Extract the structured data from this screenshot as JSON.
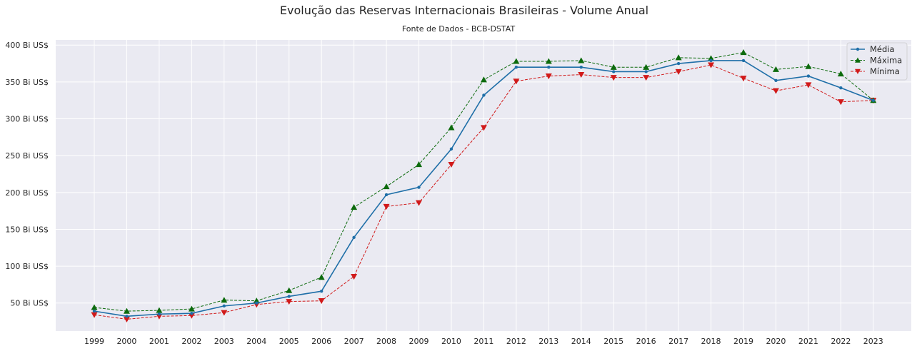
{
  "chart_data": {
    "type": "line",
    "title": "Evolução das Reservas Internacionais Brasileiras - Volume Anual",
    "subtitle": "Fonte de Dados - BCB-DSTAT",
    "xlabel": "",
    "ylabel": "",
    "x": [
      "1999",
      "2000",
      "2001",
      "2002",
      "2003",
      "2004",
      "2005",
      "2006",
      "2007",
      "2008",
      "2009",
      "2010",
      "2011",
      "2012",
      "2013",
      "2014",
      "2015",
      "2016",
      "2017",
      "2018",
      "2019",
      "2020",
      "2021",
      "2022",
      "2023"
    ],
    "ylim": [
      12,
      407
    ],
    "yticks": [
      50,
      100,
      150,
      200,
      250,
      300,
      350,
      400
    ],
    "ytick_labels": [
      "50 Bi US$",
      "100 Bi US$",
      "150 Bi US$",
      "200 Bi US$",
      "250 Bi US$",
      "300 Bi US$",
      "350 Bi US$",
      "400 Bi US$"
    ],
    "grid": true,
    "legend_position": "top-right",
    "colors": {
      "background": "#eaeaf2",
      "grid": "#ffffff"
    },
    "series": [
      {
        "name": "Média",
        "color": "#1f6fa8",
        "line_style": "solid",
        "marker": "dot",
        "values": [
          39,
          32,
          35,
          36,
          46,
          50,
          59,
          66,
          139,
          197,
          207,
          259,
          332,
          370,
          370,
          370,
          364,
          364,
          375,
          379,
          379,
          352,
          358,
          342,
          325
        ]
      },
      {
        "name": "Máxima",
        "color": "#0d6b0d",
        "line_style": "dashed",
        "marker": "triangle-up",
        "values": [
          44,
          39,
          40,
          42,
          54,
          53,
          67,
          85,
          180,
          208,
          238,
          288,
          353,
          378,
          378,
          379,
          370,
          370,
          383,
          382,
          390,
          367,
          371,
          361,
          325
        ]
      },
      {
        "name": "Mínima",
        "color": "#d11a1a",
        "line_style": "dashed",
        "marker": "triangle-down",
        "values": [
          34,
          28,
          32,
          33,
          37,
          48,
          52,
          53,
          86,
          181,
          186,
          238,
          288,
          351,
          358,
          360,
          356,
          356,
          364,
          373,
          355,
          338,
          346,
          323,
          325
        ]
      }
    ]
  }
}
